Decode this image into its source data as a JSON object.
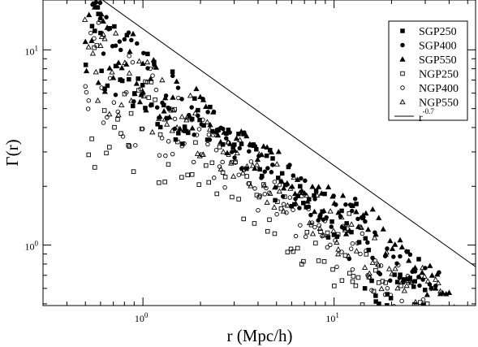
{
  "chart_data": {
    "type": "scatter",
    "title": "",
    "xlabel": "r (Mpc/h)",
    "ylabel": "Γ(r)",
    "xscale": "log",
    "yscale": "log",
    "xlim": [
      0.3,
      55
    ],
    "ylim": [
      0.49,
      18
    ],
    "grid": false,
    "legend_position": "top-right",
    "x_major_ticks": [
      {
        "value": 1,
        "mantissa": "10",
        "exponent": "0"
      },
      {
        "value": 10,
        "mantissa": "10",
        "exponent": "1"
      }
    ],
    "y_major_ticks": [
      {
        "value": 1,
        "mantissa": "10",
        "exponent": "0"
      },
      {
        "value": 10,
        "mantissa": "10",
        "exponent": "1"
      }
    ],
    "reference_line": {
      "label": "r^-0.7",
      "base": "r",
      "exponent": "-0.7",
      "slope": -0.7,
      "amplitude": 12.8
    },
    "series": [
      {
        "name": "SGP250",
        "marker": "square-filled",
        "amp": 6.8,
        "slope": -0.7,
        "xmin": 0.5,
        "xmax": 30,
        "bump_amp": 0.08,
        "dip_amp": 0.38,
        "spread": 0.12,
        "n": 110,
        "points": [
          [
            0.56,
            12.5
          ],
          [
            0.58,
            16.5
          ],
          [
            0.6,
            12.2
          ],
          [
            14.5,
            0.6
          ],
          [
            16.5,
            0.55
          ],
          [
            19,
            0.56
          ]
        ]
      },
      {
        "name": "SGP400",
        "marker": "circle-filled",
        "amp": 7.1,
        "slope": -0.7,
        "xmin": 0.55,
        "xmax": 35,
        "bump_amp": 0.16,
        "dip_amp": 0.2,
        "spread": 0.1,
        "n": 110,
        "points": [
          [
            0.6,
            14.5
          ],
          [
            0.72,
            10.5
          ],
          [
            12,
            0.85
          ],
          [
            22,
            0.68
          ],
          [
            28,
            0.62
          ]
        ]
      },
      {
        "name": "SGP550",
        "marker": "triangle-filled",
        "amp": 7.5,
        "slope": -0.7,
        "xmin": 0.5,
        "xmax": 42,
        "bump_amp": 0.06,
        "dip_amp": 0.0,
        "spread": 0.1,
        "n": 110,
        "points": [
          [
            0.5,
            11.0
          ],
          [
            0.62,
            14.0
          ],
          [
            0.65,
            13.0
          ],
          [
            1.0,
            8.5
          ],
          [
            34,
            0.6
          ],
          [
            40,
            0.57
          ]
        ]
      },
      {
        "name": "NGP250",
        "marker": "square-open",
        "amp": 4.4,
        "slope": -0.7,
        "xmin": 0.55,
        "xmax": 32,
        "bump_amp": 0.0,
        "dip_amp": 0.0,
        "spread": 0.16,
        "n": 100,
        "points": [
          [
            0.52,
            2.9
          ],
          [
            0.54,
            3.5
          ],
          [
            0.56,
            2.5
          ],
          [
            0.85,
            3.2
          ],
          [
            12.0,
            1.45
          ],
          [
            12.5,
            0.65
          ]
        ]
      },
      {
        "name": "NGP400",
        "marker": "circle-open",
        "amp": 5.2,
        "slope": -0.7,
        "xmin": 0.5,
        "xmax": 33,
        "bump_amp": 0.08,
        "dip_amp": 0.12,
        "spread": 0.13,
        "n": 110,
        "points": [
          [
            0.5,
            6.5
          ],
          [
            0.52,
            5.5
          ],
          [
            12.5,
            0.75
          ],
          [
            15,
            0.7
          ]
        ]
      },
      {
        "name": "NGP550",
        "marker": "triangle-open",
        "amp": 6.2,
        "slope": -0.7,
        "xmin": 0.5,
        "xmax": 38,
        "bump_amp": 0.04,
        "dip_amp": 0.06,
        "spread": 0.12,
        "n": 110,
        "points": [
          [
            0.6,
            10.5
          ],
          [
            0.62,
            12.0
          ],
          [
            1.7,
            4.5
          ],
          [
            10.5,
            0.9
          ],
          [
            24,
            0.62
          ],
          [
            36,
            0.58
          ]
        ]
      }
    ]
  }
}
